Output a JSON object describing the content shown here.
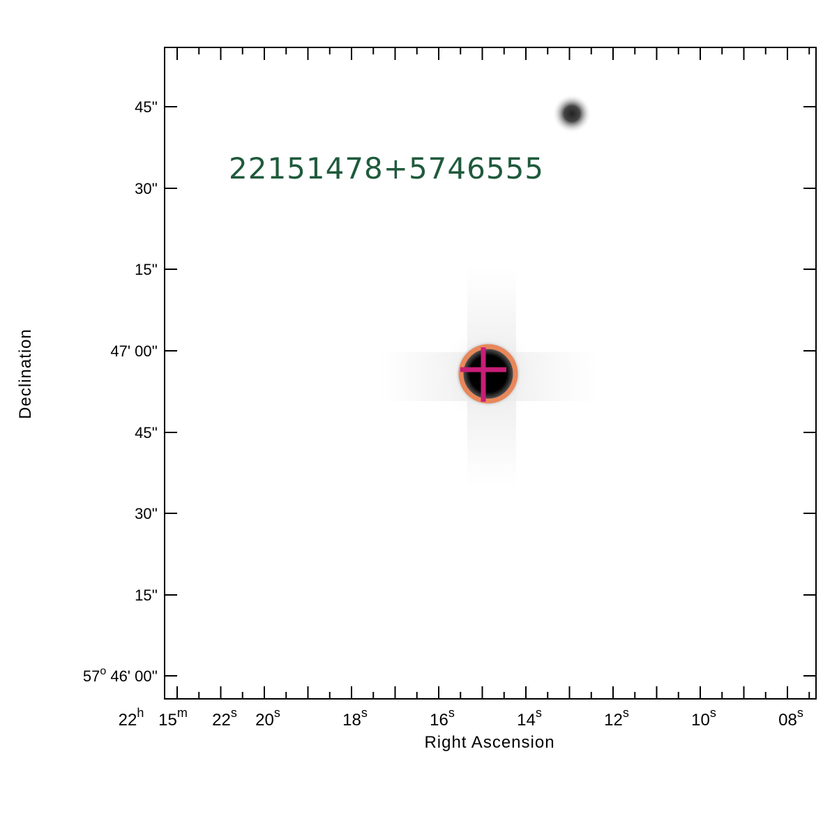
{
  "source_label": "22151478+5746555",
  "colors": {
    "label_text": "#1f5a3c",
    "aperture_circle": "#e8875a",
    "crosshair": "#c81e78"
  },
  "axes": {
    "xlabel": "Right Ascension",
    "ylabel": "Declination",
    "y_ticks": [
      {
        "label": "45''"
      },
      {
        "label": "30''"
      },
      {
        "label": "15''"
      },
      {
        "label": "47' 00''"
      },
      {
        "label": "45''"
      },
      {
        "label": "30''"
      },
      {
        "label": "15''"
      },
      {
        "label": "57° 46' 00''",
        "deg": "57",
        "sup": "o",
        "rest": " 46' 00''"
      }
    ],
    "x_prefix": [
      {
        "base": "22",
        "sup": "h"
      },
      {
        "base": "15",
        "sup": "m"
      }
    ],
    "x_ticks": [
      {
        "base": "22",
        "sup": "s"
      },
      {
        "base": "20",
        "sup": "s"
      },
      {
        "base": "18",
        "sup": "s"
      },
      {
        "base": "16",
        "sup": "s"
      },
      {
        "base": "14",
        "sup": "s"
      },
      {
        "base": "12",
        "sup": "s"
      },
      {
        "base": "10",
        "sup": "s"
      },
      {
        "base": "08",
        "sup": "s"
      }
    ]
  }
}
